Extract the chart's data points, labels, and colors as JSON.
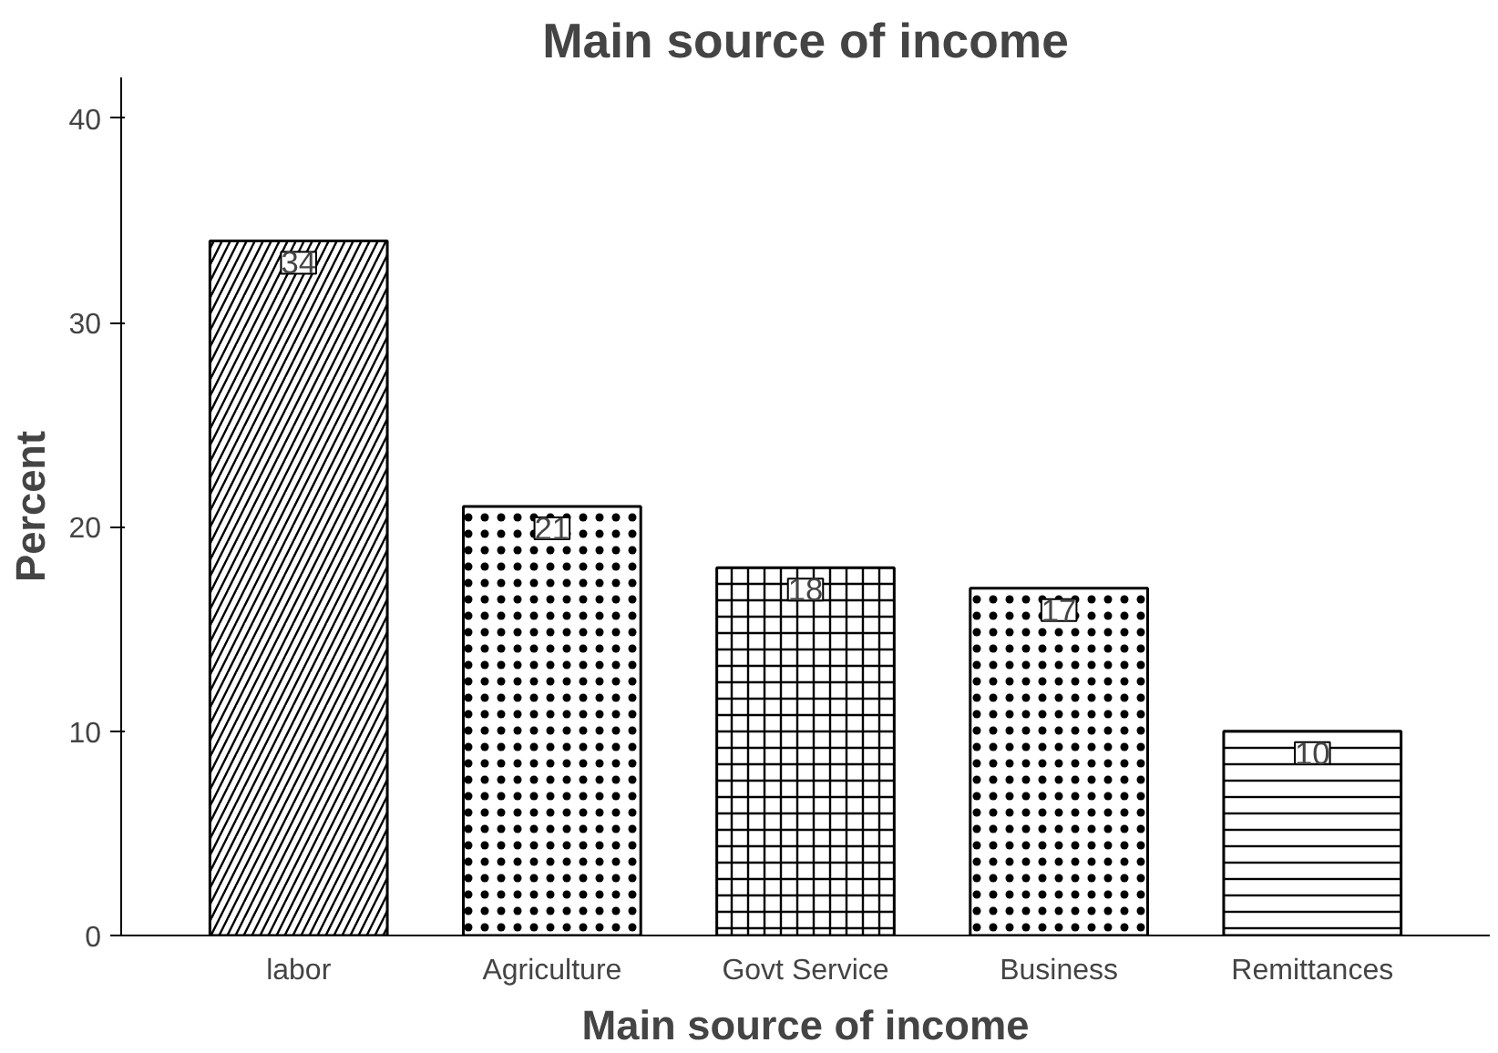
{
  "chart_data": {
    "type": "bar",
    "title": "Main source of income",
    "xlabel": "Main source of income",
    "ylabel": "Percent",
    "categories": [
      "labor",
      "Agriculture",
      "Govt Service",
      "Business",
      "Remittances"
    ],
    "values": [
      34,
      21,
      18,
      17,
      10
    ],
    "color": "#ffffff",
    "ylim": [
      0,
      42
    ],
    "yticks": [
      0,
      10,
      20,
      30,
      40
    ],
    "grid": false,
    "data_labels": true
  }
}
